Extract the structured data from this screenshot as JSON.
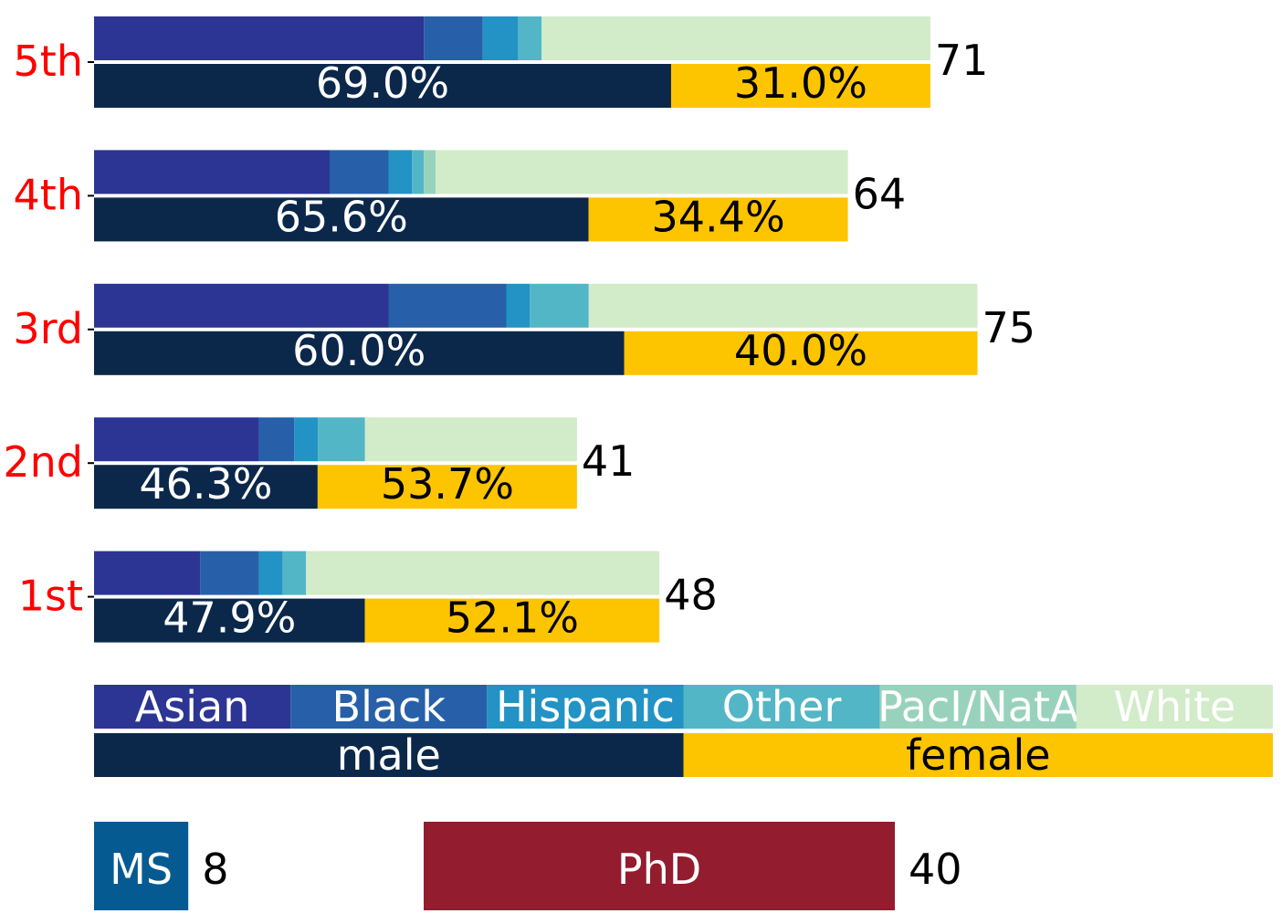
{
  "chart_data": {
    "type": "bar",
    "orientation": "horizontal",
    "categories": [
      "5th",
      "4th",
      "3rd",
      "2nd",
      "1st"
    ],
    "totals": [
      71,
      64,
      75,
      41,
      48
    ],
    "ethnicity_series": [
      {
        "name": "Asian",
        "color": "#2c3593",
        "values": [
          28,
          20,
          25,
          14,
          9
        ]
      },
      {
        "name": "Black",
        "color": "#2760a8",
        "values": [
          5,
          5,
          10,
          3,
          5
        ]
      },
      {
        "name": "Hispanic",
        "color": "#2293c4",
        "values": [
          3,
          2,
          2,
          2,
          2
        ]
      },
      {
        "name": "Other",
        "color": "#52b6c6",
        "values": [
          2,
          1,
          5,
          4,
          2
        ]
      },
      {
        "name": "PacI/NatA",
        "color": "#98d2bd",
        "values": [
          0,
          1,
          0,
          0,
          0
        ]
      },
      {
        "name": "White",
        "color": "#d2ebc9",
        "values": [
          33,
          35,
          33,
          18,
          30
        ]
      }
    ],
    "gender_series": [
      {
        "name": "male",
        "color": "#0b284b",
        "text_color": "#ffffff",
        "values": [
          69.0,
          65.6,
          60.0,
          46.3,
          47.9
        ],
        "labels": [
          "69.0%",
          "65.6%",
          "60.0%",
          "46.3%",
          "47.9%"
        ]
      },
      {
        "name": "female",
        "color": "#fdc500",
        "text_color": "#000000",
        "values": [
          31.0,
          34.4,
          40.0,
          53.7,
          52.1
        ],
        "labels": [
          "31.0%",
          "34.4%",
          "40.0%",
          "53.7%",
          "52.1%"
        ]
      }
    ],
    "degree": [
      {
        "name": "MS",
        "value": 8,
        "color": "#065a92"
      },
      {
        "name": "PhD",
        "value": 40,
        "color": "#931c2e"
      }
    ],
    "category_label_color": "#ff0000",
    "grid": false,
    "legend_position": "bottom"
  }
}
